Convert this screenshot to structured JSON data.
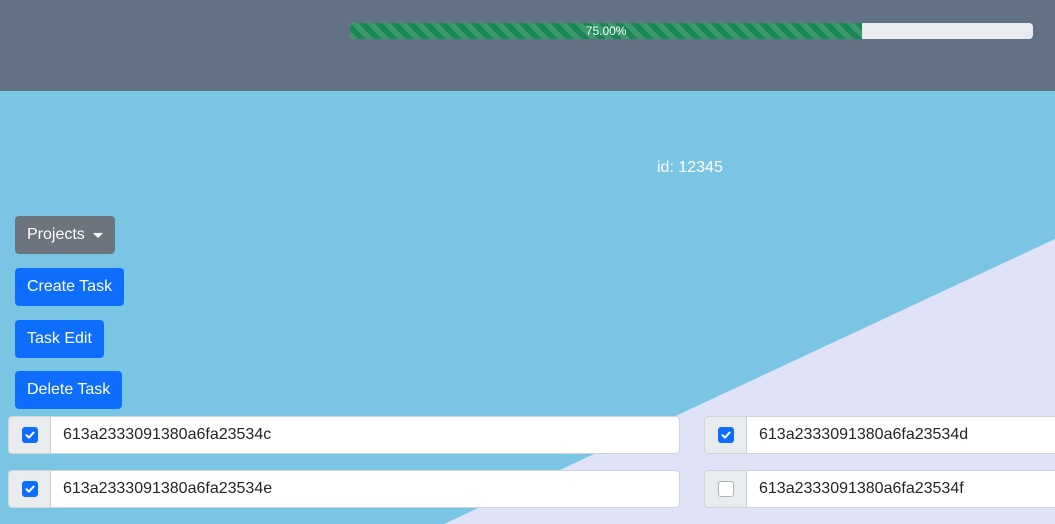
{
  "progress": {
    "value": 75,
    "label": "75.00%"
  },
  "header": {
    "id_label": "id: 12345"
  },
  "buttons": {
    "projects": "Projects",
    "create_task": "Create Task",
    "task_edit": "Task Edit",
    "delete_task": "Delete Task"
  },
  "tasks": [
    {
      "id": "613a2333091380a6fa23534c",
      "checked": true
    },
    {
      "id": "613a2333091380a6fa23534d",
      "checked": true
    },
    {
      "id": "613a2333091380a6fa23534e",
      "checked": true
    },
    {
      "id": "613a2333091380a6fa23534f",
      "checked": false
    }
  ],
  "colors": {
    "header_bg": "#627284",
    "page_bg": "#7bc5e4",
    "accent_shape": "#e0e3f8",
    "primary": "#0d6efd",
    "secondary": "#6c757d",
    "progress": "#198754"
  }
}
